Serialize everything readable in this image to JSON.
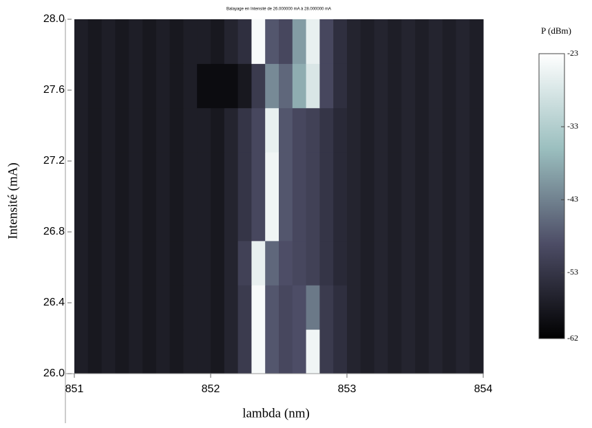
{
  "chart_data": {
    "type": "heatmap",
    "title": "Balayage en Intensité de 26.000000 mA à 28.000000 mA",
    "x_label": "lambda (nm)",
    "y_label": "Intensité (mA)",
    "colorbar_label": "P (dBm)",
    "x": [
      851.05,
      851.15,
      851.25,
      851.35,
      851.45,
      851.55,
      851.65,
      851.75,
      851.85,
      851.95,
      852.05,
      852.15,
      852.25,
      852.35,
      852.45,
      852.55,
      852.65,
      852.75,
      852.85,
      852.95,
      853.05,
      853.15,
      853.25,
      853.35,
      853.45,
      853.55,
      853.65,
      853.75,
      853.85,
      853.95
    ],
    "y": [
      26.125,
      26.375,
      26.625,
      26.875,
      27.125,
      27.375,
      27.625,
      27.875
    ],
    "z": [
      [
        -57,
        -58,
        -57,
        -58,
        -57,
        -58,
        -57,
        -58,
        -57,
        -57,
        -58,
        -56,
        -52,
        -24,
        -48,
        -50,
        -49,
        -25,
        -52,
        -54,
        -56,
        -57,
        -56,
        -57,
        -56,
        -57,
        -56,
        -57,
        -56,
        -57
      ],
      [
        -57,
        -58,
        -57,
        -58,
        -57,
        -58,
        -57,
        -58,
        -57,
        -57,
        -58,
        -56,
        -52,
        -24,
        -48,
        -50,
        -49,
        -44,
        -52,
        -54,
        -56,
        -57,
        -56,
        -57,
        -56,
        -57,
        -56,
        -57,
        -56,
        -57
      ],
      [
        -57,
        -58,
        -57,
        -58,
        -57,
        -58,
        -57,
        -58,
        -57,
        -57,
        -58,
        -56,
        -51,
        -26,
        -46,
        -49,
        -50,
        -51,
        -53,
        -55,
        -56,
        -57,
        -56,
        -57,
        -56,
        -57,
        -56,
        -57,
        -56,
        -57
      ],
      [
        -57,
        -58,
        -57,
        -58,
        -57,
        -58,
        -57,
        -58,
        -57,
        -57,
        -58,
        -56,
        -53,
        -50,
        -25,
        -48,
        -50,
        -51,
        -53,
        -55,
        -56,
        -57,
        -56,
        -57,
        -56,
        -57,
        -56,
        -57,
        -56,
        -57
      ],
      [
        -57,
        -58,
        -57,
        -58,
        -57,
        -58,
        -57,
        -58,
        -57,
        -57,
        -58,
        -56,
        -53,
        -50,
        -25,
        -48,
        -50,
        -51,
        -53,
        -55,
        -56,
        -57,
        -56,
        -57,
        -56,
        -57,
        -56,
        -57,
        -56,
        -57
      ],
      [
        -57,
        -58,
        -57,
        -58,
        -57,
        -58,
        -57,
        -58,
        -57,
        -57,
        -58,
        -56,
        -53,
        -50,
        -26,
        -48,
        -50,
        -51,
        -53,
        -55,
        -56,
        -57,
        -56,
        -57,
        -56,
        -57,
        -56,
        -57,
        -56,
        -57
      ],
      [
        -57,
        -58,
        -57,
        -58,
        -57,
        -58,
        -57,
        -58,
        -57,
        -60,
        -60,
        -60,
        -58,
        -52,
        -42,
        -46,
        -38,
        -28,
        -50,
        -54,
        -56,
        -57,
        -56,
        -57,
        -56,
        -57,
        -56,
        -57,
        -56,
        -57
      ],
      [
        -57,
        -58,
        -57,
        -58,
        -57,
        -58,
        -57,
        -58,
        -57,
        -57,
        -58,
        -56,
        -54,
        -24,
        -48,
        -50,
        -40,
        -26,
        -50,
        -54,
        -56,
        -57,
        -56,
        -57,
        -56,
        -57,
        -56,
        -57,
        -56,
        -57
      ]
    ],
    "xlim": [
      851,
      854
    ],
    "xticks": [
      851,
      852,
      853,
      854
    ],
    "ylim": [
      26,
      28
    ],
    "yticks": [
      {
        "value": 26,
        "label": "26.0"
      },
      26.4,
      26.8,
      27.2,
      27.6,
      {
        "value": 28,
        "label": "28.0"
      }
    ],
    "zlim": [
      -62,
      -23
    ],
    "zticks": [
      -23,
      -33,
      -43,
      -53,
      -62
    ],
    "colormap": [
      "#000000",
      "#4d4d66",
      "#9bbfbf",
      "#ffffff"
    ]
  }
}
